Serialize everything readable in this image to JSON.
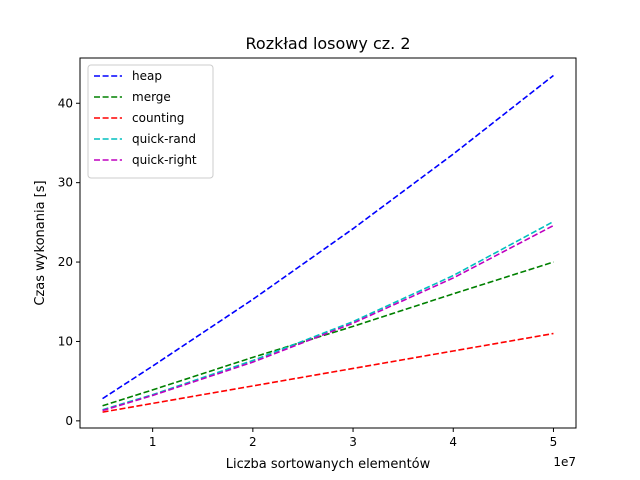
{
  "chart_data": {
    "type": "line",
    "title": "Rozkład losowy cz. 2",
    "xlabel": "Liczba sortowanych elementów",
    "ylabel": "Czas wykonania [s]",
    "x_offset_label": "1e7",
    "x_scale": 10000000,
    "xlim": [
      2750000,
      52250000
    ],
    "ylim": [
      -0.9,
      45.7
    ],
    "xticks": [
      10000000,
      20000000,
      30000000,
      40000000,
      50000000
    ],
    "xtick_labels": [
      "1",
      "2",
      "3",
      "4",
      "5"
    ],
    "yticks": [
      0,
      10,
      20,
      30,
      40
    ],
    "ytick_labels": [
      "0",
      "10",
      "20",
      "30",
      "40"
    ],
    "grid": false,
    "legend_position": "upper-left",
    "x": [
      5000000,
      10000000,
      20000000,
      30000000,
      40000000,
      50000000
    ],
    "series": [
      {
        "name": "heap",
        "color": "#0000ff",
        "values": [
          2.8,
          6.9,
          15.3,
          24.2,
          33.6,
          43.5
        ]
      },
      {
        "name": "merge",
        "color": "#008000",
        "values": [
          1.9,
          3.9,
          8.0,
          11.9,
          16.0,
          20.0
        ]
      },
      {
        "name": "counting",
        "color": "#ff0000",
        "values": [
          1.1,
          2.2,
          4.4,
          6.6,
          8.8,
          11.0
        ]
      },
      {
        "name": "quick-rand",
        "color": "#00bfbf",
        "values": [
          1.4,
          3.3,
          7.6,
          12.5,
          18.3,
          25.1
        ]
      },
      {
        "name": "quick-right",
        "color": "#bf00bf",
        "values": [
          1.3,
          3.2,
          7.4,
          12.3,
          18.0,
          24.6
        ]
      }
    ]
  }
}
